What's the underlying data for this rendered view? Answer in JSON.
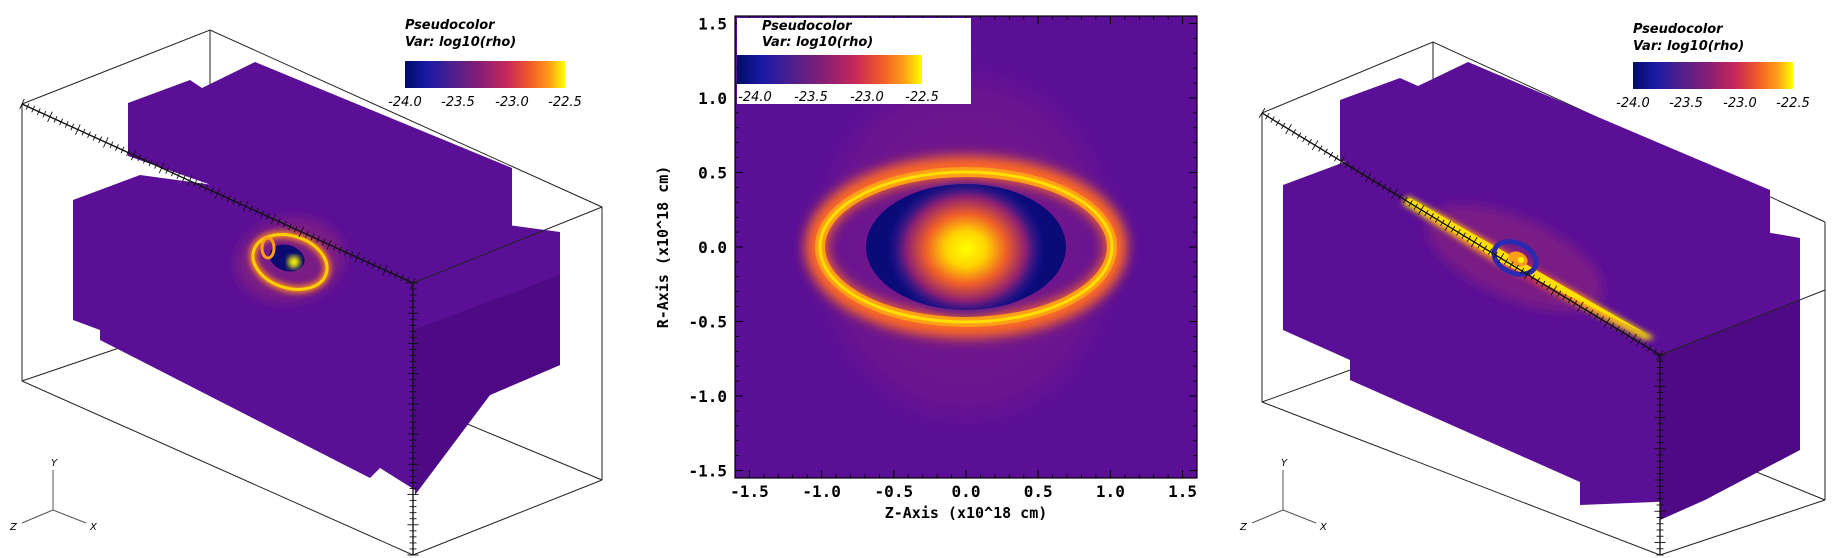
{
  "colors": {
    "background": "#ffffff",
    "block_face": "#5a0f96",
    "block_face_shade": "#4d0a84",
    "colormap": [
      "#000c66",
      "#1a1aa6",
      "#4f1f8c",
      "#8a1f74",
      "#c8285a",
      "#f05a28",
      "#ff9c18",
      "#ffff00"
    ]
  },
  "legend": {
    "title": "Pseudocolor",
    "var_label": "Var: log10(rho)",
    "ticks": [
      "-24.0",
      "-23.5",
      "-23.0",
      "-22.5"
    ]
  },
  "triad": {
    "x": "X",
    "y": "Y",
    "z": "Z"
  },
  "chart_data": [
    {
      "type": "heatmap",
      "view": "3d-volume",
      "variable": "log10(rho)",
      "colorbar_range": [
        -24.0,
        -22.5
      ],
      "features": [
        "ring-shaped shell near cube center",
        "dense inner core"
      ]
    },
    {
      "type": "heatmap",
      "view": "2d-slice",
      "variable": "log10(rho)",
      "colorbar_range": [
        -24.0,
        -22.5
      ],
      "xlabel": "Z-Axis (x10^18 cm)",
      "ylabel": "R-Axis (x10^18 cm)",
      "xlim": [
        -1.6,
        1.6
      ],
      "ylim": [
        -1.55,
        1.55
      ],
      "xticks": [
        "-1.5",
        "-1.0",
        "-0.5",
        "0.0",
        "0.5",
        "1.0",
        "1.5"
      ],
      "yticks": [
        "-1.5",
        "-1.0",
        "-0.5",
        "0.0",
        "0.5",
        "1.0",
        "1.5"
      ],
      "structures": {
        "background_log_rho": -23.8,
        "halo_log_rho": -23.6,
        "shell_semi_axis_z": 1.0,
        "shell_semi_axis_r": 0.55,
        "shell_log_rho": -22.8,
        "cavity_log_rho": -24.0,
        "core_log_rho": -22.5
      }
    },
    {
      "type": "heatmap",
      "view": "3d-volume",
      "variable": "log10(rho)",
      "colorbar_range": [
        -24.0,
        -22.5
      ],
      "features": [
        "elongated bipolar jet along diagonal",
        "small ring near center"
      ]
    }
  ]
}
